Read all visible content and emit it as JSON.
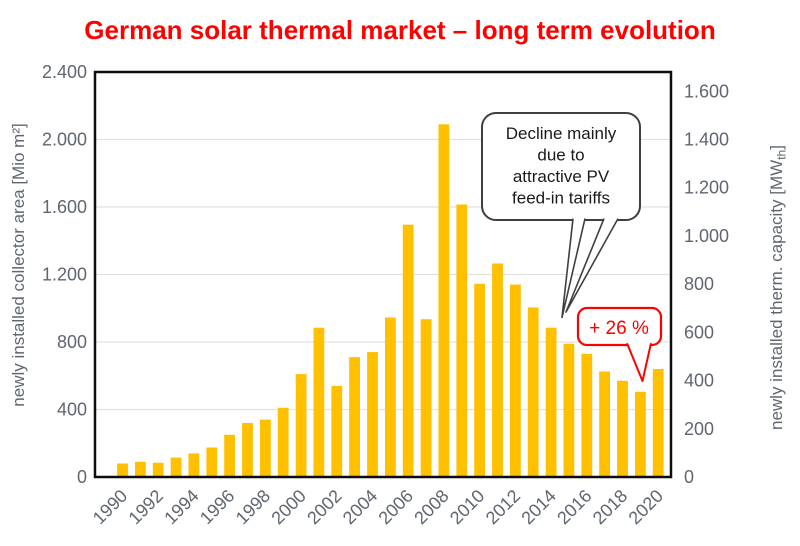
{
  "title": "German solar thermal market – long term evolution",
  "colors": {
    "title_red": "#FF0000",
    "bar_gold": "#FFC000",
    "gridline": "#E1E1E1",
    "frame": "#0D0D0D",
    "axis_label_gray": "#5F6670",
    "callout_border_gray": "#3F3F3F",
    "callout_text": "#1A1A1A",
    "accent_red": "#FF0000"
  },
  "y_axis_left": {
    "title": "newly installed collector area [Mio m²]",
    "tick_labels": [
      "0",
      "400",
      "800",
      "1.200",
      "1.600",
      "2.000",
      "2.400"
    ],
    "tick_values": [
      0,
      400,
      800,
      1200,
      1600,
      2000,
      2400
    ]
  },
  "y_axis_right": {
    "title_main": "newly installed therm. capacity [MW",
    "title_sub": "th",
    "title_close": "]",
    "tick_labels": [
      "0",
      "200",
      "400",
      "600",
      "800",
      "1.000",
      "1.200",
      "1.400",
      "1.600"
    ],
    "tick_values": [
      0,
      200,
      400,
      600,
      800,
      1000,
      1200,
      1400,
      1600
    ]
  },
  "x_axis": {
    "labeled_years": [
      "1990",
      "1992",
      "1994",
      "1996",
      "1998",
      "2000",
      "2002",
      "2004",
      "2006",
      "2008",
      "2010",
      "2012",
      "2014",
      "2016",
      "2018",
      "2020"
    ]
  },
  "chart_data": {
    "type": "bar",
    "title": "German solar thermal market – long term evolution",
    "x": [
      1990,
      1991,
      1992,
      1993,
      1994,
      1995,
      1996,
      1997,
      1998,
      1999,
      2000,
      2001,
      2002,
      2003,
      2004,
      2005,
      2006,
      2007,
      2008,
      2009,
      2010,
      2011,
      2012,
      2013,
      2014,
      2015,
      2016,
      2017,
      2018,
      2019,
      2020
    ],
    "values": [
      80,
      90,
      85,
      115,
      140,
      175,
      250,
      320,
      340,
      410,
      610,
      885,
      540,
      710,
      740,
      945,
      1495,
      935,
      2090,
      1615,
      1145,
      1265,
      1140,
      1005,
      885,
      790,
      730,
      625,
      570,
      505,
      640
    ],
    "ylabel_left": "newly installed collector area [Mio m²]",
    "ylabel_right": "newly installed therm. capacity [MWth]",
    "ylim_left": [
      0,
      2400
    ],
    "ylim_right": [
      0,
      1600
    ],
    "grid": "horizontal",
    "legend": "none",
    "bar_color": "#FFC000"
  },
  "annotations": {
    "decline": {
      "lines": [
        "Decline mainly",
        "due to",
        "attractive PV",
        "feed-in tariffs"
      ],
      "points_to_years": [
        2013,
        2014
      ]
    },
    "increase": {
      "label": "+ 26 %",
      "points_to_year": 2019
    }
  }
}
